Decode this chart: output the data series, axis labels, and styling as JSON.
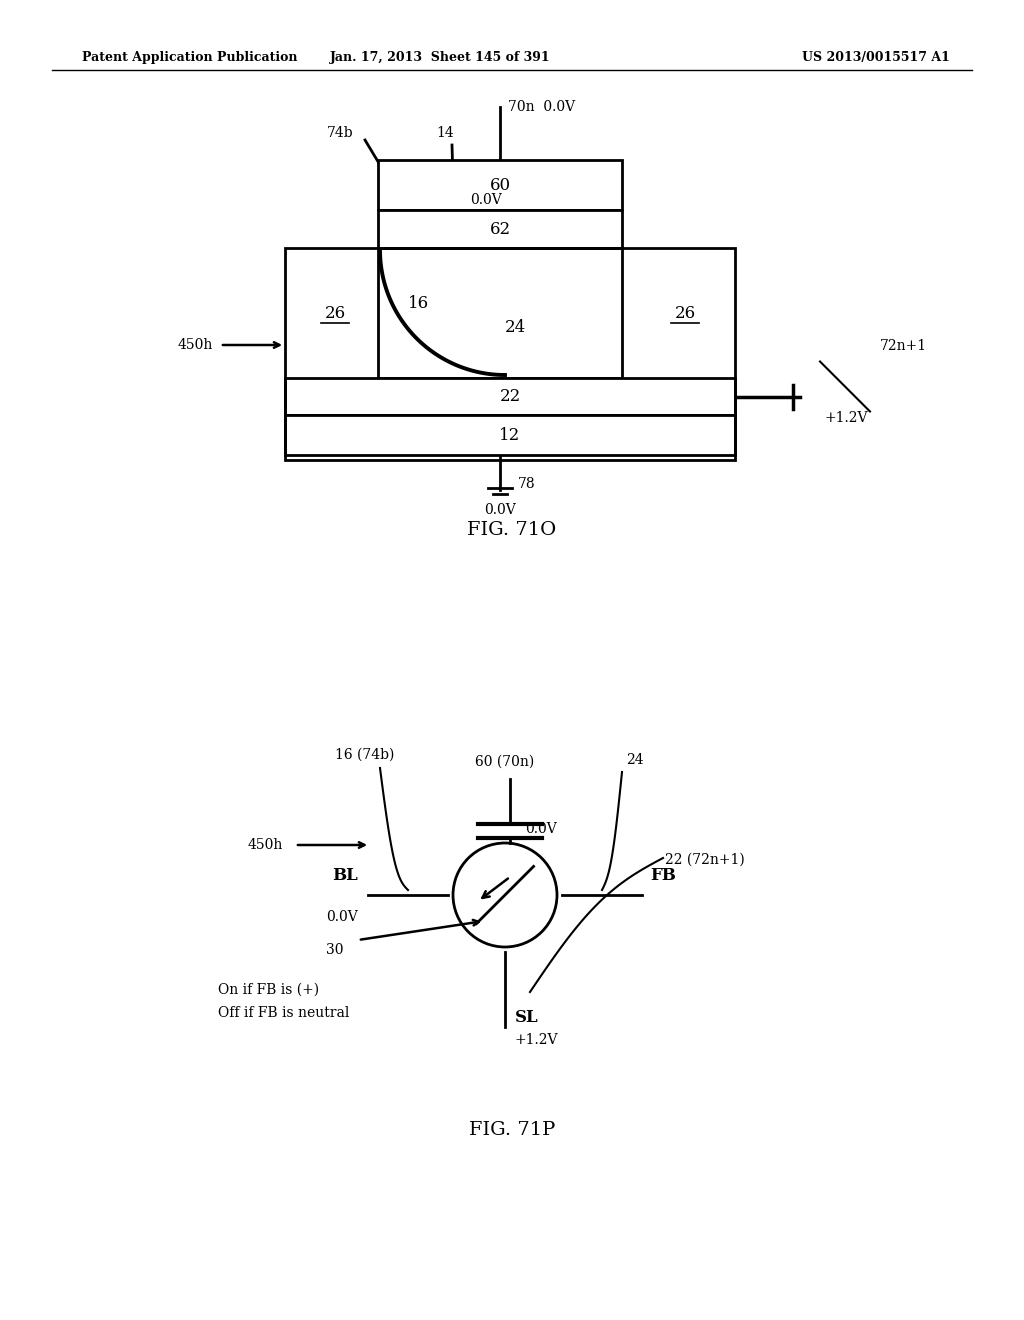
{
  "header_left": "Patent Application Publication",
  "header_middle": "Jan. 17, 2013  Sheet 145 of 391",
  "header_right": "US 2013/0015517 A1",
  "fig1_title": "FIG. 71O",
  "fig2_title": "FIG. 71P",
  "bg_color": "#ffffff",
  "line_color": "#000000"
}
